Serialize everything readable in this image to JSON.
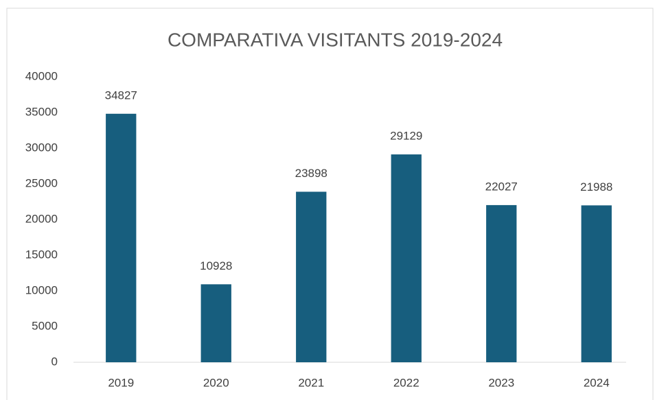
{
  "chart_data": {
    "type": "bar",
    "title": "COMPARATIVA VISITANTS 2019-2024",
    "categories": [
      "2019",
      "2020",
      "2021",
      "2022",
      "2023",
      "2024"
    ],
    "values": [
      34827,
      10928,
      23898,
      29129,
      22027,
      21988
    ],
    "color": "#175e7e",
    "ylim": [
      0,
      40000
    ],
    "yticks": [
      0,
      5000,
      10000,
      15000,
      20000,
      25000,
      30000,
      35000,
      40000
    ],
    "grid": false
  }
}
